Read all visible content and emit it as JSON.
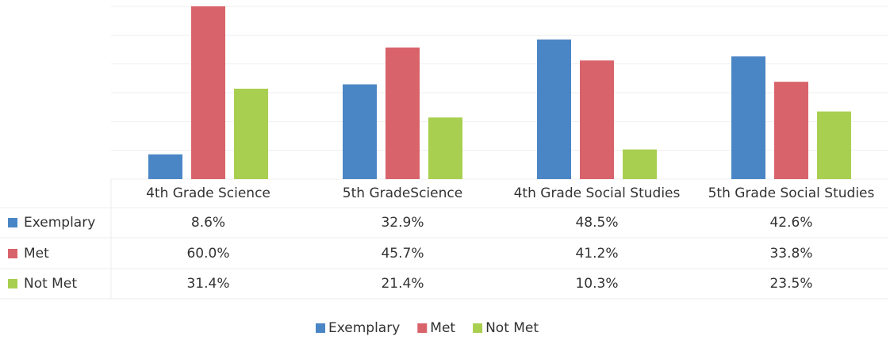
{
  "chart_data": {
    "type": "bar",
    "categories": [
      "4th Grade Science",
      "5th GradeScience",
      "4th Grade Social Studies",
      "5th Grade Social Studies"
    ],
    "series": [
      {
        "name": "Exemplary",
        "color": "#4a86c5",
        "values": [
          8.6,
          32.9,
          48.5,
          42.6
        ],
        "value_labels": [
          "8.6%",
          "32.9%",
          "48.5%",
          "42.6%"
        ]
      },
      {
        "name": "Met",
        "color": "#d9636a",
        "values": [
          60.0,
          45.7,
          41.2,
          33.8
        ],
        "value_labels": [
          "60.0%",
          "45.7%",
          "41.2%",
          "33.8%"
        ]
      },
      {
        "name": "Not Met",
        "color": "#a9cf50",
        "values": [
          31.4,
          21.4,
          10.3,
          23.5
        ],
        "value_labels": [
          "31.4%",
          "21.4%",
          "10.3%",
          "23.5%"
        ]
      }
    ],
    "ylim": [
      0,
      60
    ],
    "yticks": [
      0,
      10,
      20,
      30,
      40,
      50,
      60
    ],
    "grid": true
  }
}
